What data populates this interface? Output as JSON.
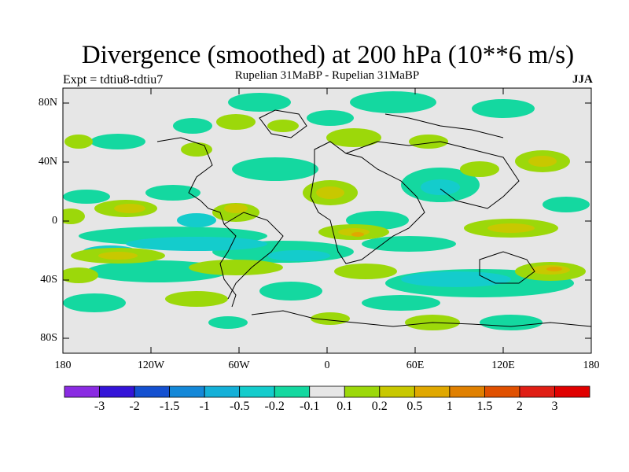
{
  "title": "Divergence (smoothed) at 200 hPa (10**6 m/s)",
  "experiment": "Expt = tdtiu8-tdtiu7",
  "subtitle": "Rupelian  31MaBP - Rupelian  31MaBP",
  "season": "JJA",
  "lat_ticks": [
    "80N",
    "40N",
    "0",
    "40S",
    "80S"
  ],
  "lon_ticks": [
    "180",
    "120W",
    "60W",
    "0",
    "60E",
    "120E",
    "180"
  ],
  "colorbar": {
    "labels": [
      "-3",
      "-2",
      "-1.5",
      "-1",
      "-0.5",
      "-0.2",
      "-0.1",
      "0.1",
      "0.2",
      "0.5",
      "1",
      "1.5",
      "2",
      "3"
    ],
    "colors": [
      "#8a2be2",
      "#3414d8",
      "#1450d0",
      "#1488d8",
      "#14b0d8",
      "#14cccc",
      "#14d8a0",
      "#e6e6e6",
      "#9cd80a",
      "#c8c800",
      "#e0a800",
      "#e08000",
      "#e05000",
      "#e01e14",
      "#e00000"
    ]
  },
  "chart_data": {
    "type": "heatmap",
    "variable": "Divergence (smoothed) at 200 hPa",
    "units": "10**6 m/s",
    "lon_range": [
      -180,
      180
    ],
    "lat_range": [
      -90,
      90
    ],
    "levels": [
      -3,
      -2,
      -1.5,
      -1,
      -0.5,
      -0.2,
      -0.1,
      0.1,
      0.2,
      0.5,
      1,
      1.5,
      2,
      3
    ]
  }
}
